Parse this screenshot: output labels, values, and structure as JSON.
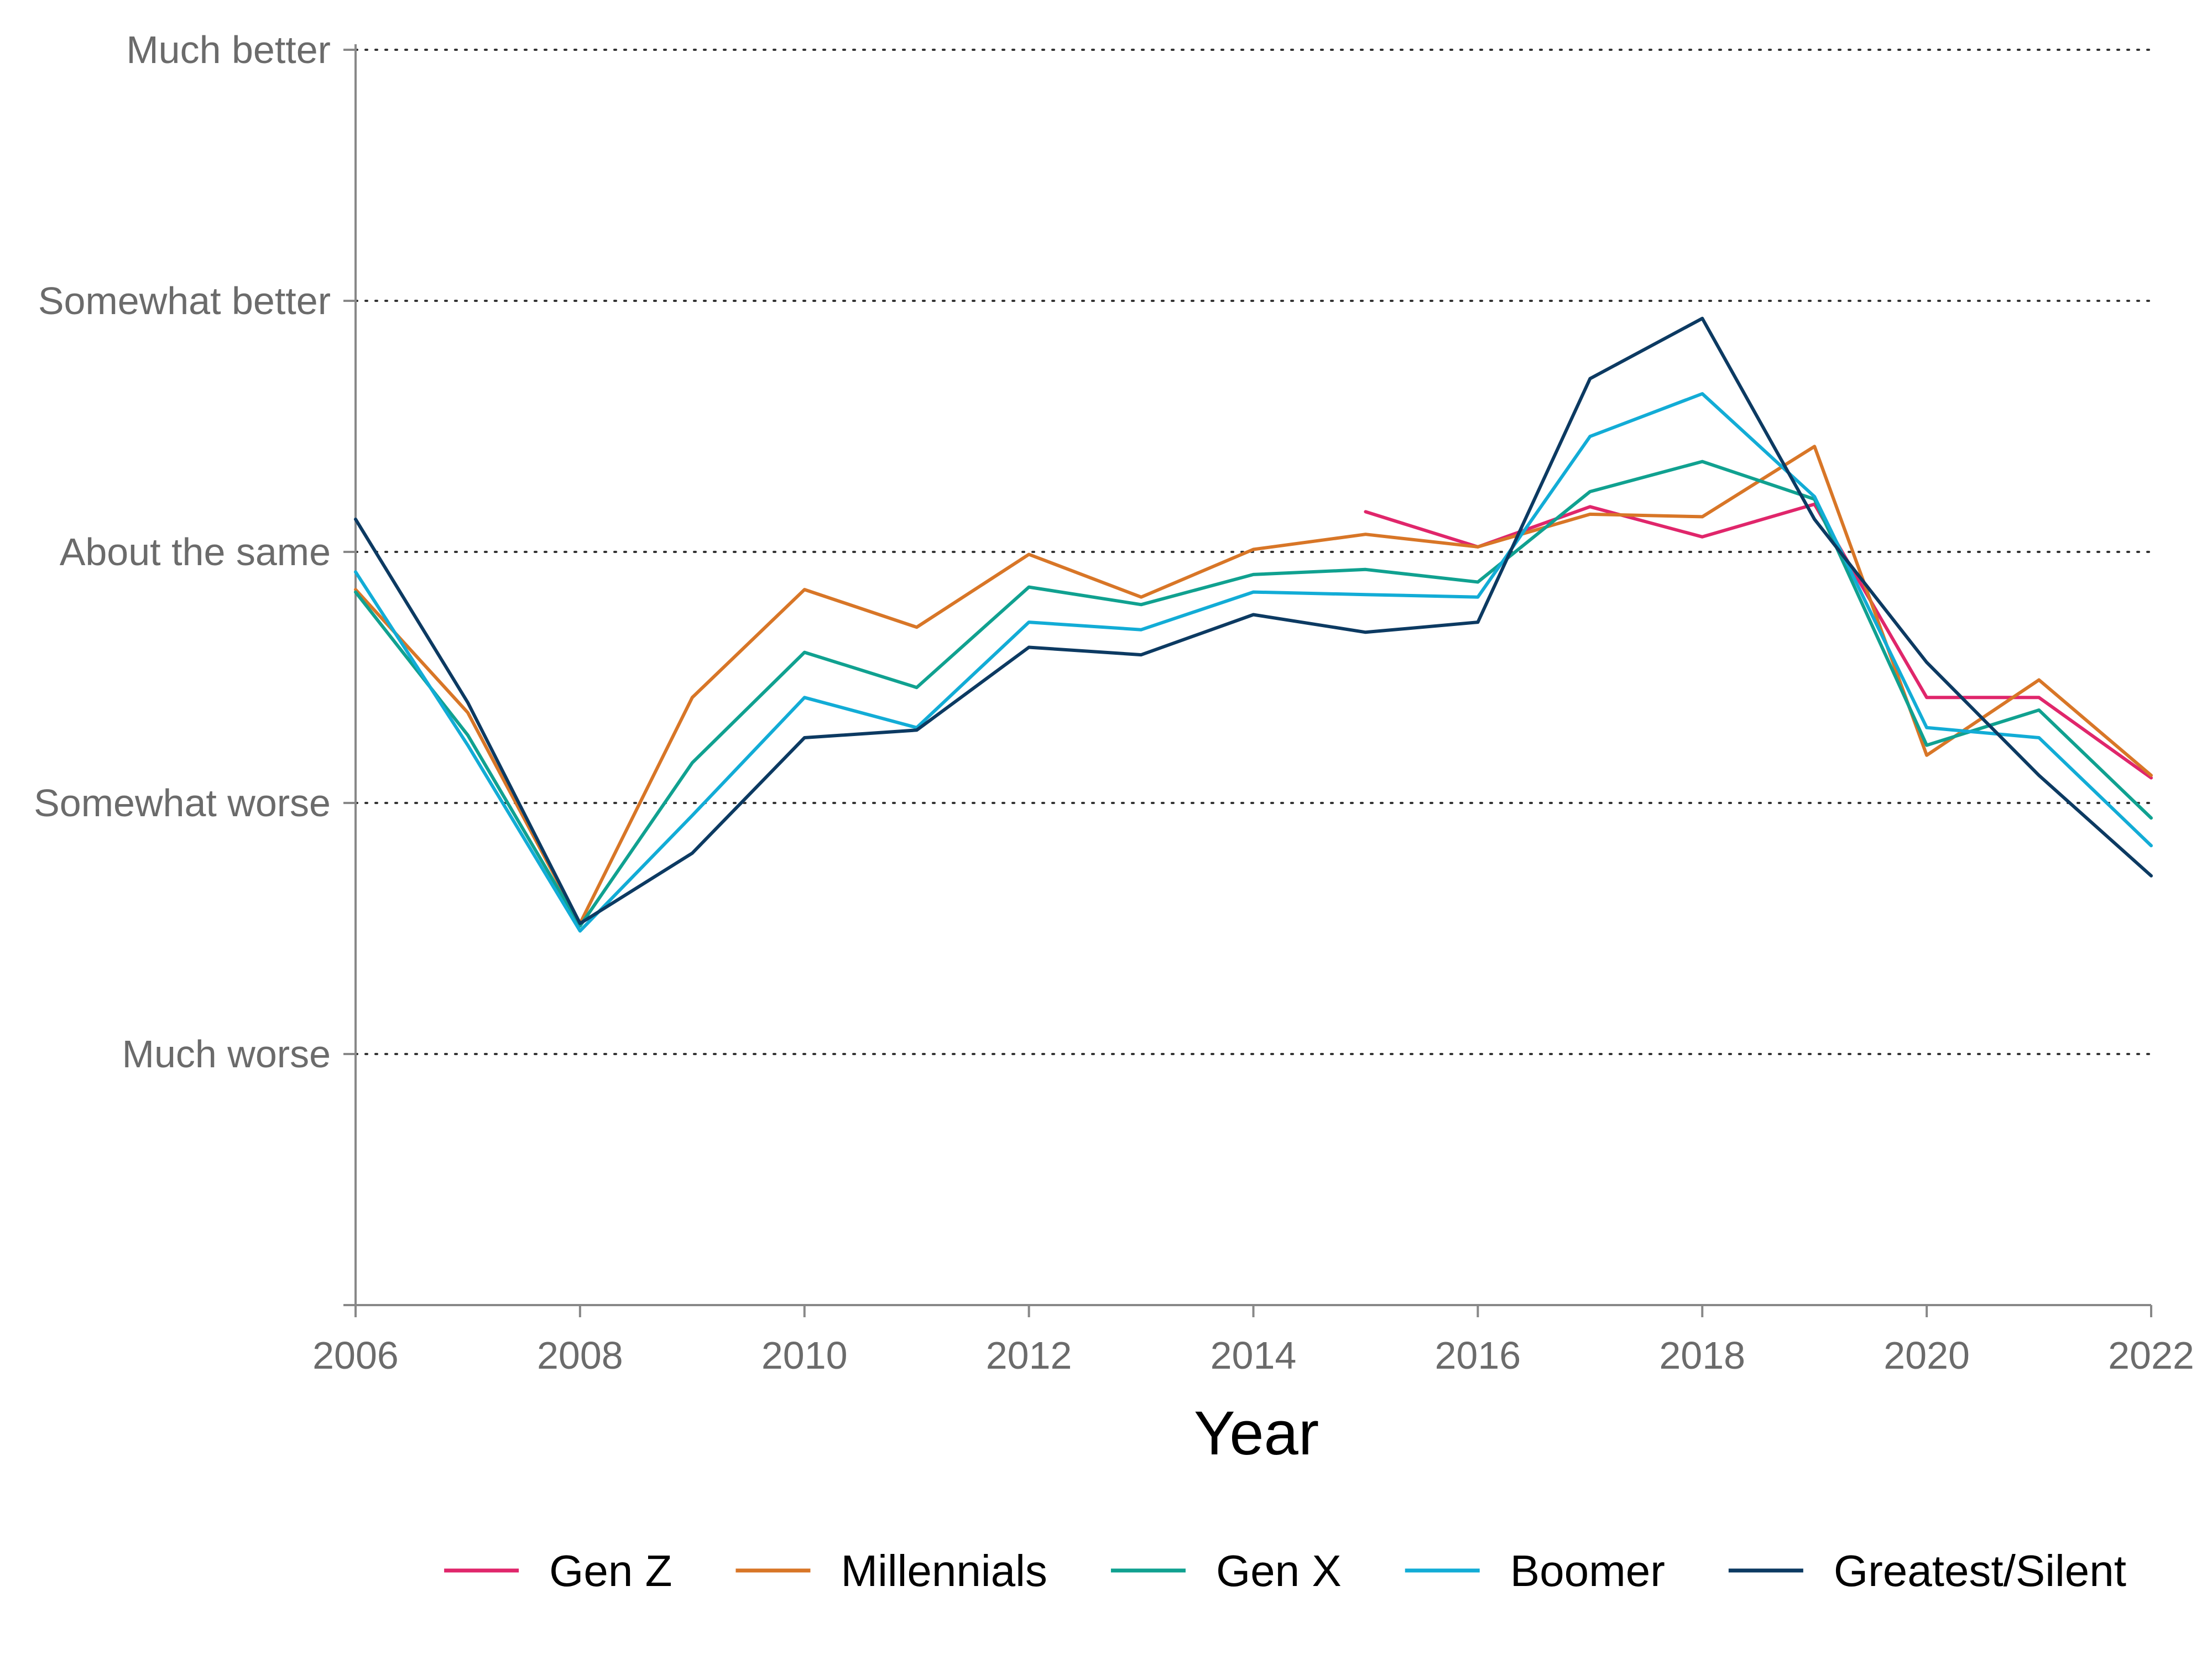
{
  "chart_data": {
    "type": "line",
    "title": "",
    "xlabel": "Year",
    "ylabel": "",
    "x_ticks": [
      "2006",
      "2008",
      "2010",
      "2012",
      "2014",
      "2016",
      "2018",
      "2020",
      "2022"
    ],
    "y_ticks": [
      {
        "value": 1,
        "label": "Much worse"
      },
      {
        "value": 2,
        "label": "Somewhat worse"
      },
      {
        "value": 3,
        "label": "About the same"
      },
      {
        "value": 4,
        "label": "Somewhat better"
      },
      {
        "value": 5,
        "label": "Much better"
      }
    ],
    "xlim": [
      2006,
      2022
    ],
    "ylim": [
      0,
      5
    ],
    "grid": "horizontal dotted",
    "legend_position": "bottom",
    "x": [
      2006,
      2007,
      2008,
      2009,
      2010,
      2011,
      2012,
      2013,
      2014,
      2015,
      2016,
      2017,
      2018,
      2019,
      2020,
      2021,
      2022
    ],
    "series": [
      {
        "name": "Gen Z",
        "color": "#e0266b",
        "values": [
          null,
          null,
          null,
          null,
          null,
          null,
          null,
          null,
          null,
          3.16,
          3.02,
          3.18,
          3.06,
          3.19,
          2.42,
          2.42,
          2.1
        ]
      },
      {
        "name": "Millennials",
        "color": "#d87627",
        "values": [
          2.85,
          2.36,
          1.52,
          2.42,
          2.85,
          2.7,
          2.99,
          2.82,
          3.01,
          3.07,
          3.02,
          3.15,
          3.14,
          3.42,
          2.19,
          2.49,
          2.11
        ]
      },
      {
        "name": "Gen X",
        "color": "#10a190",
        "values": [
          2.84,
          2.27,
          1.51,
          2.16,
          2.6,
          2.46,
          2.86,
          2.79,
          2.91,
          2.93,
          2.88,
          3.24,
          3.36,
          3.21,
          2.23,
          2.37,
          1.94
        ]
      },
      {
        "name": "Boomer",
        "color": "#12acd6",
        "values": [
          2.92,
          2.23,
          1.49,
          1.95,
          2.42,
          2.3,
          2.72,
          2.69,
          2.84,
          2.83,
          2.82,
          3.46,
          3.63,
          3.22,
          2.3,
          2.26,
          1.83
        ]
      },
      {
        "name": "Greatest/Silent",
        "color": "#0c3a62",
        "values": [
          3.13,
          2.4,
          1.52,
          1.8,
          2.26,
          2.29,
          2.62,
          2.59,
          2.75,
          2.68,
          2.72,
          3.69,
          3.93,
          3.13,
          2.56,
          2.11,
          1.71
        ]
      }
    ]
  }
}
